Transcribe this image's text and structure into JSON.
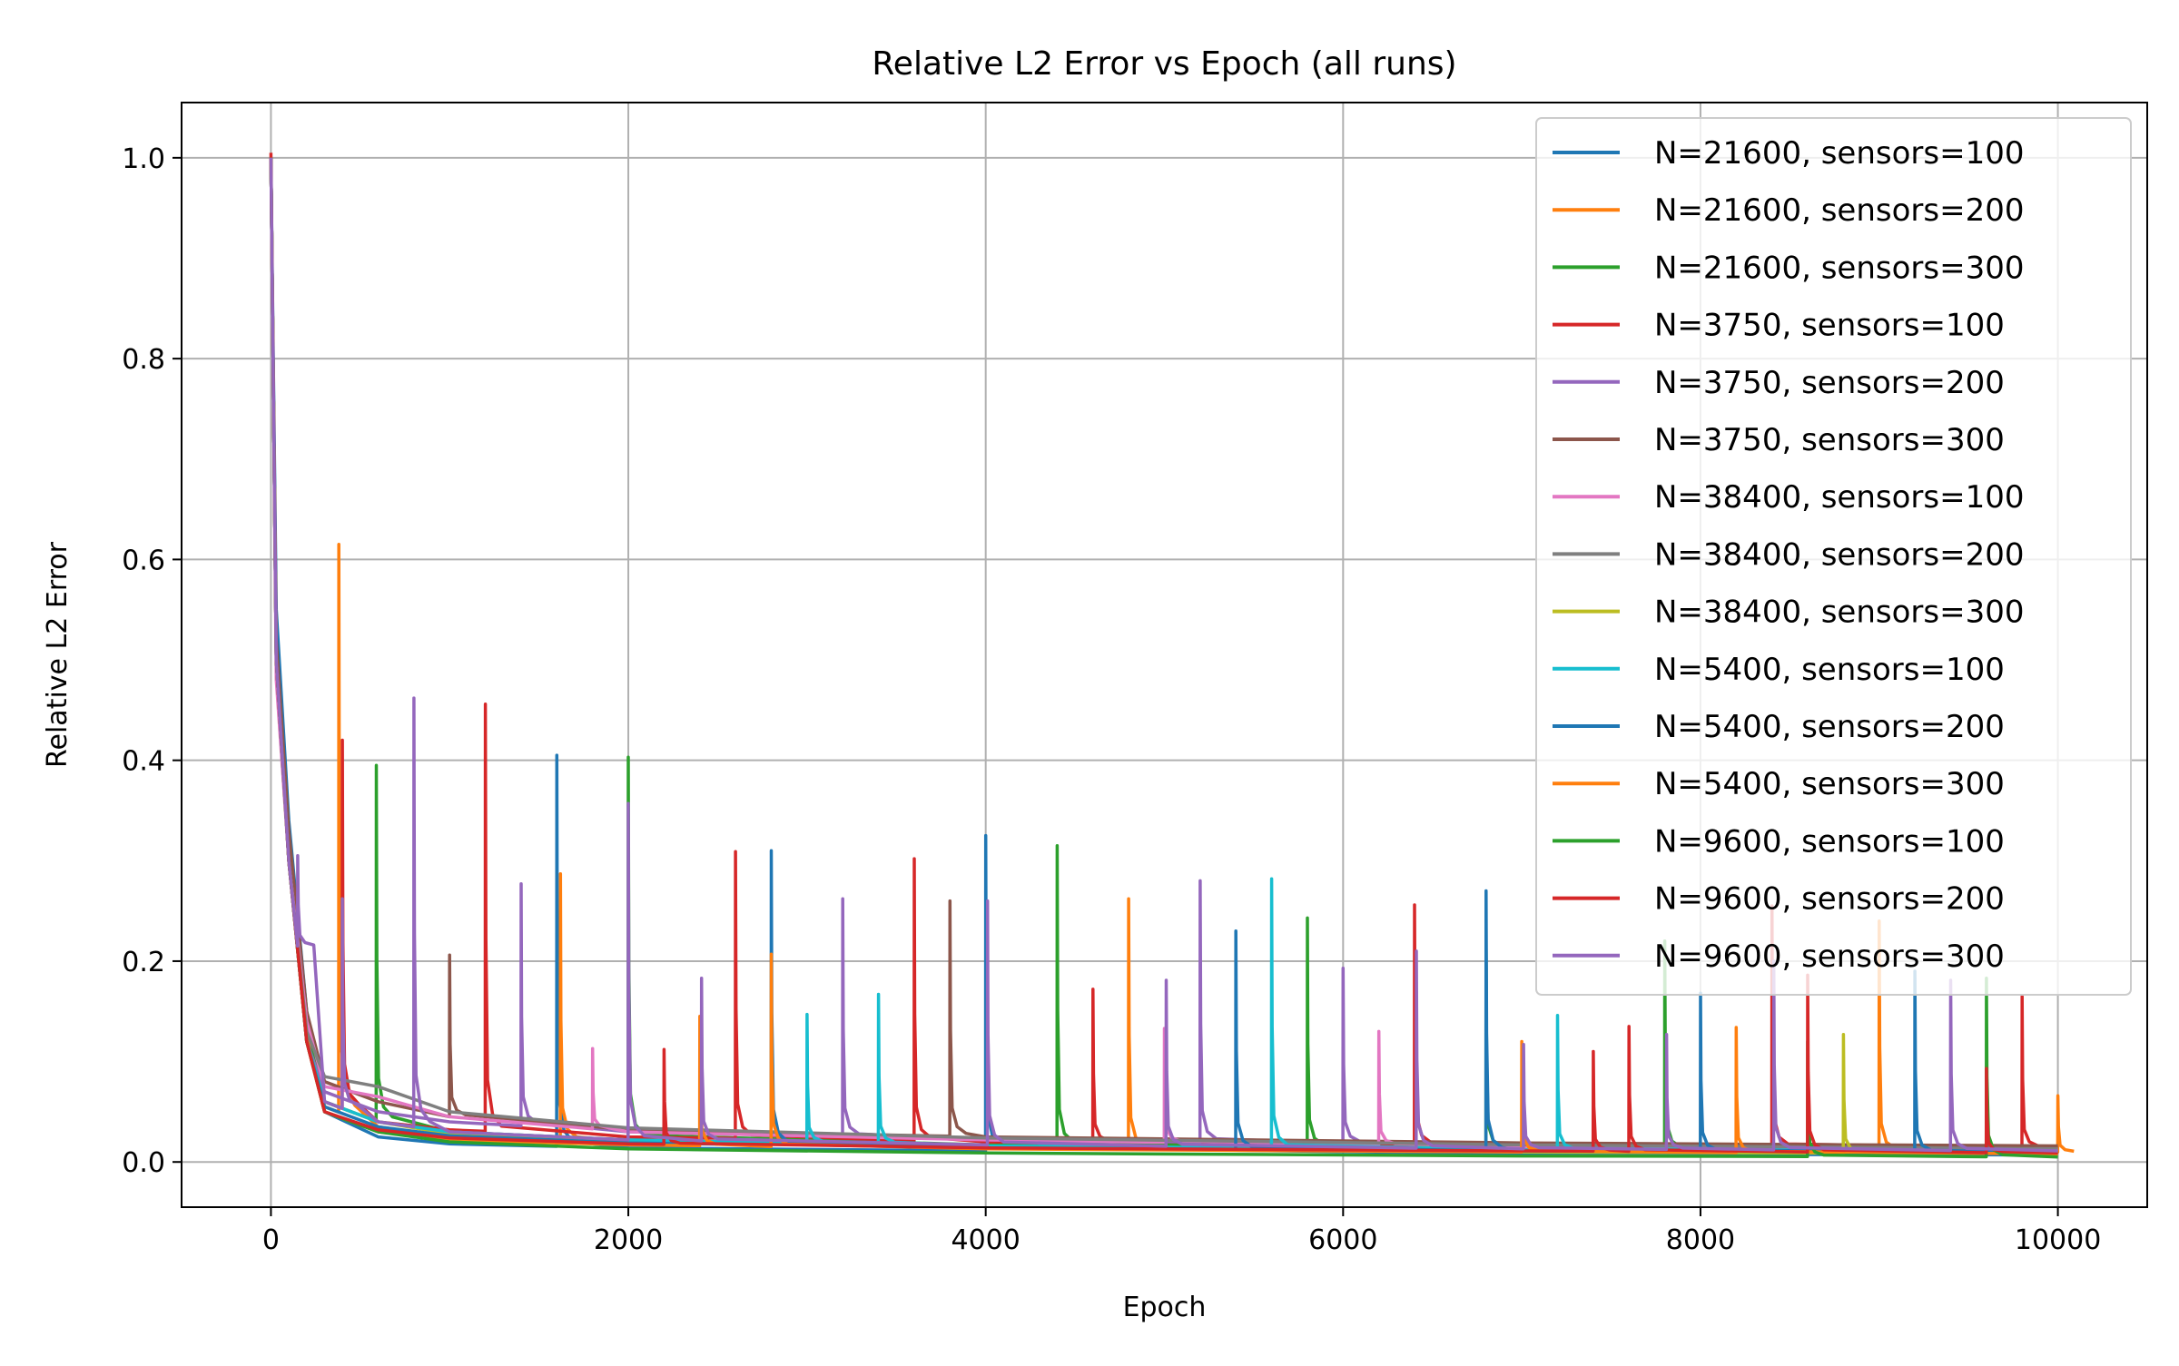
{
  "chart_data": {
    "type": "line",
    "title": "Relative L2 Error vs Epoch (all runs)",
    "xlabel": "Epoch",
    "ylabel": "Relative L2 Error",
    "xlim": [
      -500,
      10500
    ],
    "ylim": [
      -0.045,
      1.055
    ],
    "xticks": [
      0,
      2000,
      4000,
      6000,
      8000,
      10000
    ],
    "xtick_labels": [
      "0",
      "2000",
      "4000",
      "6000",
      "8000",
      "10000"
    ],
    "yticks": [
      0.0,
      0.2,
      0.4,
      0.6,
      0.8,
      1.0
    ],
    "ytick_labels": [
      "0.0",
      "0.2",
      "0.4",
      "0.6",
      "0.8",
      "1.0"
    ],
    "grid": true,
    "legend_position": "top-right",
    "series": [
      {
        "name": "N=21600, sensors=100",
        "color": "#1f77b4",
        "base": [
          [
            0,
            1.0
          ],
          [
            30,
            0.55
          ],
          [
            100,
            0.34
          ],
          [
            200,
            0.15
          ],
          [
            300,
            0.05
          ],
          [
            600,
            0.025
          ],
          [
            1000,
            0.018
          ],
          [
            2000,
            0.014
          ],
          [
            4000,
            0.011
          ],
          [
            7000,
            0.008
          ],
          [
            10000,
            0.007
          ]
        ],
        "spikes": [
          [
            1600,
            0.405
          ],
          [
            4000,
            0.325
          ]
        ]
      },
      {
        "name": "N=21600, sensors=200",
        "color": "#ff7f0e",
        "base": [
          [
            0,
            1.0
          ],
          [
            30,
            0.5
          ],
          [
            100,
            0.3
          ],
          [
            200,
            0.13
          ],
          [
            300,
            0.055
          ],
          [
            600,
            0.035
          ],
          [
            1000,
            0.025
          ],
          [
            2000,
            0.02
          ],
          [
            4000,
            0.015
          ],
          [
            7000,
            0.012
          ],
          [
            10000,
            0.01
          ]
        ],
        "spikes": [
          [
            380,
            0.615
          ],
          [
            1620,
            0.287
          ],
          [
            4800,
            0.262
          ],
          [
            9000,
            0.24
          ],
          [
            10000,
            0.066
          ]
        ]
      },
      {
        "name": "N=21600, sensors=300",
        "color": "#2ca02c",
        "base": [
          [
            0,
            1.0
          ],
          [
            30,
            0.5
          ],
          [
            100,
            0.32
          ],
          [
            200,
            0.14
          ],
          [
            300,
            0.06
          ],
          [
            600,
            0.04
          ],
          [
            1000,
            0.03
          ],
          [
            2000,
            0.022
          ],
          [
            4000,
            0.017
          ],
          [
            7000,
            0.013
          ],
          [
            10000,
            0.011
          ]
        ],
        "spikes": [
          [
            590,
            0.395
          ],
          [
            2000,
            0.403
          ],
          [
            4400,
            0.315
          ],
          [
            5800,
            0.243
          ],
          [
            6800,
            0.211
          ],
          [
            7800,
            0.22
          ]
        ]
      },
      {
        "name": "N=3750, sensors=100",
        "color": "#d62728",
        "base": [
          [
            0,
            1.005
          ],
          [
            30,
            0.5
          ],
          [
            100,
            0.3
          ],
          [
            200,
            0.12
          ],
          [
            300,
            0.06
          ],
          [
            600,
            0.04
          ],
          [
            1000,
            0.032
          ],
          [
            2000,
            0.025
          ],
          [
            4000,
            0.02
          ],
          [
            7000,
            0.016
          ],
          [
            10000,
            0.014
          ]
        ],
        "spikes": [
          [
            400,
            0.42
          ],
          [
            1200,
            0.456
          ],
          [
            2600,
            0.309
          ],
          [
            3600,
            0.302
          ],
          [
            4600,
            0.172
          ],
          [
            6400,
            0.256
          ],
          [
            8400,
            0.255
          ],
          [
            9800,
            0.165
          ]
        ]
      },
      {
        "name": "N=3750, sensors=200",
        "color": "#9467bd",
        "base": [
          [
            0,
            1.0
          ],
          [
            30,
            0.5
          ],
          [
            100,
            0.3
          ],
          [
            200,
            0.12
          ],
          [
            300,
            0.07
          ],
          [
            600,
            0.05
          ],
          [
            1000,
            0.04
          ],
          [
            2000,
            0.03
          ],
          [
            4000,
            0.022
          ],
          [
            7000,
            0.017
          ],
          [
            10000,
            0.014
          ]
        ],
        "spikes": [
          [
            1400,
            0.277
          ],
          [
            3200,
            0.262
          ],
          [
            5200,
            0.28
          ],
          [
            6000,
            0.193
          ]
        ]
      },
      {
        "name": "N=3750, sensors=300",
        "color": "#8c564b",
        "base": [
          [
            0,
            1.0
          ],
          [
            30,
            0.52
          ],
          [
            100,
            0.33
          ],
          [
            200,
            0.15
          ],
          [
            300,
            0.08
          ],
          [
            600,
            0.06
          ],
          [
            1000,
            0.045
          ],
          [
            2000,
            0.032
          ],
          [
            4000,
            0.025
          ],
          [
            7000,
            0.019
          ],
          [
            10000,
            0.016
          ]
        ],
        "spikes": [
          [
            1000,
            0.206
          ],
          [
            3800,
            0.26
          ]
        ]
      },
      {
        "name": "N=38400, sensors=100",
        "color": "#e377c2",
        "base": [
          [
            0,
            1.0
          ],
          [
            30,
            0.48
          ],
          [
            100,
            0.3
          ],
          [
            200,
            0.14
          ],
          [
            300,
            0.075
          ],
          [
            600,
            0.065
          ],
          [
            1000,
            0.045
          ],
          [
            2000,
            0.03
          ],
          [
            4000,
            0.022
          ],
          [
            7000,
            0.015
          ],
          [
            10000,
            0.012
          ]
        ],
        "spikes": [
          [
            1800,
            0.113
          ],
          [
            5000,
            0.133
          ],
          [
            6200,
            0.13
          ]
        ]
      },
      {
        "name": "N=38400, sensors=200",
        "color": "#7f7f7f",
        "base": [
          [
            0,
            1.0
          ],
          [
            30,
            0.5
          ],
          [
            100,
            0.3
          ],
          [
            200,
            0.13
          ],
          [
            300,
            0.085
          ],
          [
            600,
            0.075
          ],
          [
            1000,
            0.05
          ],
          [
            2000,
            0.034
          ],
          [
            4000,
            0.024
          ],
          [
            7000,
            0.017
          ],
          [
            10000,
            0.013
          ]
        ],
        "spikes": []
      },
      {
        "name": "N=38400, sensors=300",
        "color": "#bcbd22",
        "base": [
          [
            0,
            1.0
          ],
          [
            30,
            0.5
          ],
          [
            100,
            0.3
          ],
          [
            200,
            0.12
          ],
          [
            300,
            0.06
          ],
          [
            600,
            0.04
          ],
          [
            1000,
            0.028
          ],
          [
            2000,
            0.02
          ],
          [
            4000,
            0.014
          ],
          [
            7000,
            0.01
          ],
          [
            10000,
            0.008
          ]
        ],
        "spikes": [
          [
            8800,
            0.127
          ]
        ]
      },
      {
        "name": "N=5400, sensors=100",
        "color": "#17becf",
        "base": [
          [
            0,
            1.0
          ],
          [
            30,
            0.5
          ],
          [
            100,
            0.3
          ],
          [
            200,
            0.12
          ],
          [
            300,
            0.06
          ],
          [
            600,
            0.04
          ],
          [
            1000,
            0.03
          ],
          [
            2000,
            0.022
          ],
          [
            4000,
            0.016
          ],
          [
            7000,
            0.012
          ],
          [
            10000,
            0.01
          ]
        ],
        "spikes": [
          [
            3000,
            0.147
          ],
          [
            3400,
            0.167
          ],
          [
            5600,
            0.282
          ],
          [
            7200,
            0.146
          ]
        ]
      },
      {
        "name": "N=5400, sensors=200",
        "color": "#1f77b4",
        "base": [
          [
            0,
            1.0
          ],
          [
            30,
            0.5
          ],
          [
            100,
            0.3
          ],
          [
            200,
            0.12
          ],
          [
            300,
            0.055
          ],
          [
            600,
            0.035
          ],
          [
            1000,
            0.026
          ],
          [
            2000,
            0.019
          ],
          [
            4000,
            0.014
          ],
          [
            7000,
            0.011
          ],
          [
            10000,
            0.009
          ]
        ],
        "spikes": [
          [
            2800,
            0.31
          ],
          [
            5400,
            0.23
          ],
          [
            6800,
            0.27
          ],
          [
            8000,
            0.168
          ],
          [
            9200,
            0.19
          ]
        ]
      },
      {
        "name": "N=5400, sensors=300",
        "color": "#ff7f0e",
        "base": [
          [
            0,
            1.0
          ],
          [
            30,
            0.5
          ],
          [
            100,
            0.3
          ],
          [
            200,
            0.12
          ],
          [
            300,
            0.05
          ],
          [
            600,
            0.03
          ],
          [
            1000,
            0.022
          ],
          [
            2000,
            0.017
          ],
          [
            4000,
            0.013
          ],
          [
            7000,
            0.01
          ],
          [
            10000,
            0.008
          ]
        ],
        "spikes": [
          [
            2400,
            0.145
          ],
          [
            2800,
            0.207
          ],
          [
            7000,
            0.12
          ],
          [
            8200,
            0.134
          ]
        ]
      },
      {
        "name": "N=9600, sensors=100",
        "color": "#2ca02c",
        "base": [
          [
            0,
            1.0
          ],
          [
            30,
            0.5
          ],
          [
            100,
            0.3
          ],
          [
            200,
            0.12
          ],
          [
            300,
            0.05
          ],
          [
            600,
            0.03
          ],
          [
            1000,
            0.02
          ],
          [
            2000,
            0.013
          ],
          [
            4000,
            0.009
          ],
          [
            7000,
            0.006
          ],
          [
            10000,
            0.005
          ]
        ],
        "spikes": [
          [
            8600,
            0.12
          ],
          [
            9600,
            0.183
          ]
        ]
      },
      {
        "name": "N=9600, sensors=200",
        "color": "#d62728",
        "base": [
          [
            0,
            1.0
          ],
          [
            30,
            0.5
          ],
          [
            100,
            0.3
          ],
          [
            200,
            0.12
          ],
          [
            300,
            0.05
          ],
          [
            600,
            0.032
          ],
          [
            1000,
            0.024
          ],
          [
            2000,
            0.018
          ],
          [
            4000,
            0.014
          ],
          [
            7000,
            0.011
          ],
          [
            10000,
            0.009
          ]
        ],
        "spikes": [
          [
            2200,
            0.112
          ],
          [
            7400,
            0.11
          ],
          [
            7600,
            0.135
          ],
          [
            8600,
            0.186
          ],
          [
            9600,
            0.093
          ]
        ]
      },
      {
        "name": "N=9600, sensors=300",
        "color": "#9467bd",
        "base": [
          [
            0,
            1.0
          ],
          [
            30,
            0.5
          ],
          [
            100,
            0.3
          ],
          [
            200,
            0.13
          ],
          [
            300,
            0.06
          ],
          [
            600,
            0.04
          ],
          [
            1000,
            0.03
          ],
          [
            2000,
            0.022
          ],
          [
            4000,
            0.017
          ],
          [
            7000,
            0.013
          ],
          [
            10000,
            0.011
          ]
        ],
        "spikes": [
          [
            150,
            0.305
          ],
          [
            400,
            0.262
          ],
          [
            800,
            0.462
          ],
          [
            2000,
            0.357
          ],
          [
            2410,
            0.183
          ],
          [
            4010,
            0.26
          ],
          [
            5010,
            0.181
          ],
          [
            6410,
            0.21
          ],
          [
            7010,
            0.117
          ],
          [
            7810,
            0.127
          ],
          [
            8410,
            0.2
          ],
          [
            9400,
            0.181
          ]
        ]
      }
    ]
  }
}
